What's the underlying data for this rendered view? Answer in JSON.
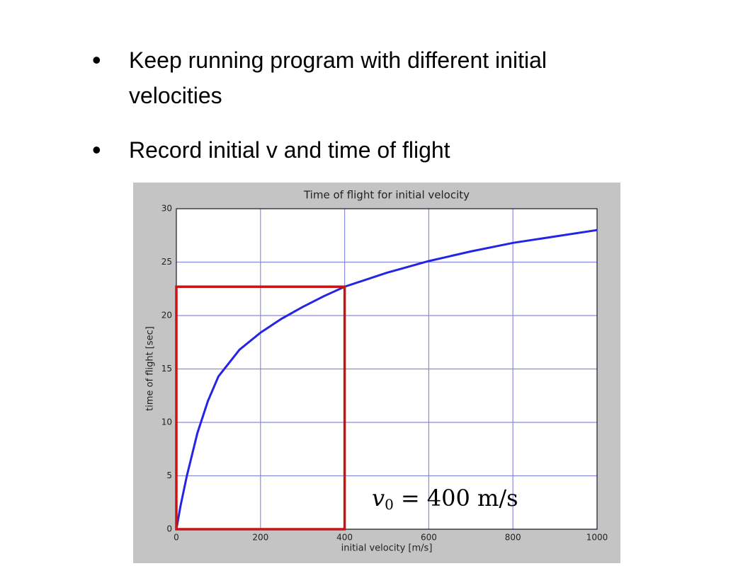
{
  "bullets": [
    "Keep running program with different initial velocities",
    "Record initial v and time of flight"
  ],
  "chart_data": {
    "type": "line",
    "title": "Time of flight for initial velocity",
    "xlabel": "initial velocity [m/s]",
    "ylabel": "time of flight [sec]",
    "x": [
      0,
      10,
      25,
      50,
      75,
      100,
      150,
      200,
      250,
      300,
      350,
      400,
      500,
      600,
      700,
      800,
      900,
      1000
    ],
    "series": [
      {
        "name": "time of flight",
        "color": "#2424e6",
        "values": [
          0,
          2.2,
          5,
          9,
          12,
          14.3,
          16.8,
          18.4,
          19.7,
          20.8,
          21.8,
          22.7,
          24,
          25.1,
          26,
          26.8,
          27.4,
          28
        ]
      }
    ],
    "xlim": [
      0,
      1000
    ],
    "ylim": [
      0,
      30
    ],
    "xticks": [
      0,
      200,
      400,
      600,
      800,
      1000
    ],
    "yticks": [
      0,
      5,
      10,
      15,
      20,
      25,
      30
    ],
    "grid": true,
    "grid_color": "#8a8ae0",
    "highlight": {
      "x": 400,
      "y": 22.7,
      "color": "#c81414"
    },
    "annotation": {
      "symbol": "v",
      "subscript": "0",
      "text": "= 400 m/s"
    }
  }
}
